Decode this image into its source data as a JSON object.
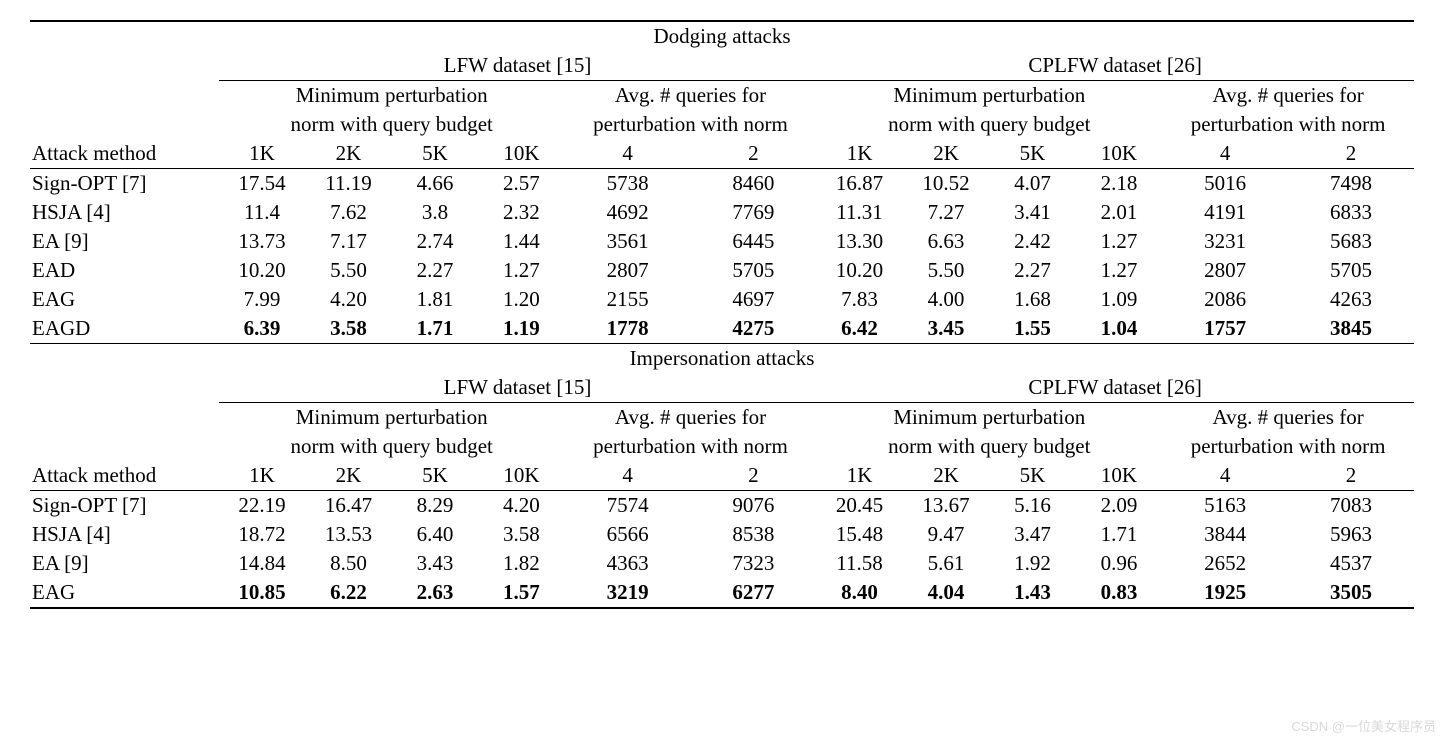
{
  "sections": [
    {
      "title": "Dodging attacks",
      "datasets": [
        "LFW dataset [15]",
        "CPLFW dataset [26]"
      ],
      "groupHeaders": {
        "minPert": [
          "Minimum perturbation",
          "norm with query budget"
        ],
        "avgQ": [
          "Avg. # queries for",
          "perturbation with norm"
        ]
      },
      "budgetCols": [
        "1K",
        "2K",
        "5K",
        "10K"
      ],
      "normCols": [
        "4",
        "2"
      ],
      "attackLabel": "Attack method",
      "rows": [
        {
          "name": "Sign-OPT [7]",
          "bold": false,
          "cells": [
            "17.54",
            "11.19",
            "4.66",
            "2.57",
            "5738",
            "8460",
            "16.87",
            "10.52",
            "4.07",
            "2.18",
            "5016",
            "7498"
          ]
        },
        {
          "name": "HSJA [4]",
          "bold": false,
          "cells": [
            "11.4",
            "7.62",
            "3.8",
            "2.32",
            "4692",
            "7769",
            "11.31",
            "7.27",
            "3.41",
            "2.01",
            "4191",
            "6833"
          ]
        },
        {
          "name": "EA [9]",
          "bold": false,
          "cells": [
            "13.73",
            "7.17",
            "2.74",
            "1.44",
            "3561",
            "6445",
            "13.30",
            "6.63",
            "2.42",
            "1.27",
            "3231",
            "5683"
          ]
        },
        {
          "name": "EAD",
          "bold": false,
          "cells": [
            "10.20",
            "5.50",
            "2.27",
            "1.27",
            "2807",
            "5705",
            "10.20",
            "5.50",
            "2.27",
            "1.27",
            "2807",
            "5705"
          ]
        },
        {
          "name": "EAG",
          "bold": false,
          "cells": [
            "7.99",
            "4.20",
            "1.81",
            "1.20",
            "2155",
            "4697",
            "7.83",
            "4.00",
            "1.68",
            "1.09",
            "2086",
            "4263"
          ]
        },
        {
          "name": "EAGD",
          "bold": true,
          "cells": [
            "6.39",
            "3.58",
            "1.71",
            "1.19",
            "1778",
            "4275",
            "6.42",
            "3.45",
            "1.55",
            "1.04",
            "1757",
            "3845"
          ]
        }
      ]
    },
    {
      "title": "Impersonation attacks",
      "datasets": [
        "LFW dataset [15]",
        "CPLFW dataset [26]"
      ],
      "groupHeaders": {
        "minPert": [
          "Minimum perturbation",
          "norm with query budget"
        ],
        "avgQ": [
          "Avg. # queries for",
          "perturbation with norm"
        ]
      },
      "budgetCols": [
        "1K",
        "2K",
        "5K",
        "10K"
      ],
      "normCols": [
        "4",
        "2"
      ],
      "attackLabel": "Attack method",
      "rows": [
        {
          "name": "Sign-OPT [7]",
          "bold": false,
          "cells": [
            "22.19",
            "16.47",
            "8.29",
            "4.20",
            "7574",
            "9076",
            "20.45",
            "13.67",
            "5.16",
            "2.09",
            "5163",
            "7083"
          ]
        },
        {
          "name": "HSJA [4]",
          "bold": false,
          "cells": [
            "18.72",
            "13.53",
            "6.40",
            "3.58",
            "6566",
            "8538",
            "15.48",
            "9.47",
            "3.47",
            "1.71",
            "3844",
            "5963"
          ]
        },
        {
          "name": "EA [9]",
          "bold": false,
          "cells": [
            "14.84",
            "8.50",
            "3.43",
            "1.82",
            "4363",
            "7323",
            "11.58",
            "5.61",
            "1.92",
            "0.96",
            "2652",
            "4537"
          ]
        },
        {
          "name": "EAG",
          "bold": true,
          "cells": [
            "10.85",
            "6.22",
            "2.63",
            "1.57",
            "3219",
            "6277",
            "8.40",
            "4.04",
            "1.43",
            "0.83",
            "1925",
            "3505"
          ]
        }
      ]
    }
  ],
  "watermark": "CSDN @一位美女程序员",
  "style": {
    "font": "Times New Roman",
    "fontsize_body": 21,
    "text_color": "#000000",
    "background_color": "#ffffff",
    "rule_color": "#000000",
    "watermark_color": "#d8d8d8"
  }
}
